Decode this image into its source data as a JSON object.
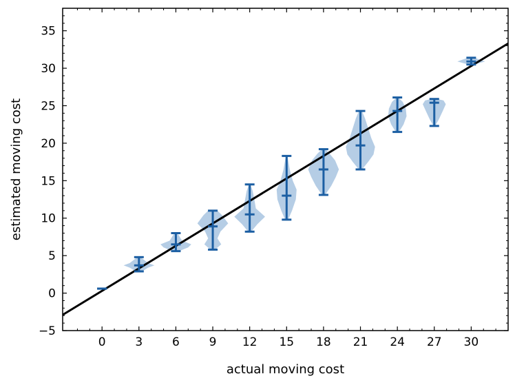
{
  "chart_data": {
    "type": "violin",
    "xlabel": "actual moving cost",
    "ylabel": "estimated moving cost",
    "xlim": [
      -3.2,
      33
    ],
    "ylim": [
      -5,
      38
    ],
    "xticks": [
      0,
      3,
      6,
      9,
      12,
      15,
      18,
      21,
      24,
      27,
      30
    ],
    "yticks": [
      -5,
      0,
      5,
      10,
      15,
      20,
      25,
      30,
      35
    ],
    "reference_line": {
      "slope": 1,
      "intercept": 0.3
    },
    "colors": {
      "violin_fill": "#a8c4e0",
      "whisker": "#1c5fa3",
      "line": "#000000"
    },
    "violins": [
      {
        "x": 0,
        "min": 0.6,
        "max": 0.6,
        "median": 0.6,
        "shape": [
          [
            0.6,
            0.3
          ]
        ]
      },
      {
        "x": 3,
        "min": 2.9,
        "max": 4.8,
        "median": 3.7,
        "shape": [
          [
            2.9,
            0.2
          ],
          [
            3.4,
            0.6
          ],
          [
            3.7,
            1.0
          ],
          [
            4.0,
            0.6
          ],
          [
            4.8,
            0.1
          ]
        ]
      },
      {
        "x": 6,
        "min": 5.6,
        "max": 8.0,
        "median": 6.5,
        "shape": [
          [
            5.6,
            0.2
          ],
          [
            6.1,
            0.8
          ],
          [
            6.5,
            1.0
          ],
          [
            7.0,
            0.4
          ],
          [
            8.0,
            0.1
          ]
        ]
      },
      {
        "x": 9,
        "min": 5.8,
        "max": 11.0,
        "median": 8.9,
        "shape": [
          [
            5.8,
            0.15
          ],
          [
            6.5,
            0.55
          ],
          [
            7.3,
            0.3
          ],
          [
            8.2,
            0.5
          ],
          [
            9.3,
            1.0
          ],
          [
            10.4,
            0.6
          ],
          [
            11.0,
            0.3
          ]
        ]
      },
      {
        "x": 12,
        "min": 8.2,
        "max": 14.5,
        "median": 10.5,
        "shape": [
          [
            8.2,
            0.1
          ],
          [
            9.2,
            0.5
          ],
          [
            10.2,
            1.0
          ],
          [
            11.3,
            0.4
          ],
          [
            12.5,
            0.3
          ],
          [
            13.6,
            0.2
          ],
          [
            14.5,
            0.05
          ]
        ]
      },
      {
        "x": 15,
        "min": 9.8,
        "max": 18.3,
        "median": 13.0,
        "shape": [
          [
            9.8,
            0.1
          ],
          [
            11.0,
            0.35
          ],
          [
            12.5,
            0.6
          ],
          [
            13.8,
            0.65
          ],
          [
            15.0,
            0.4
          ],
          [
            16.5,
            0.2
          ],
          [
            18.3,
            0.05
          ]
        ]
      },
      {
        "x": 18,
        "min": 13.1,
        "max": 19.2,
        "median": 16.5,
        "shape": [
          [
            13.1,
            0.1
          ],
          [
            14.3,
            0.5
          ],
          [
            15.5,
            0.8
          ],
          [
            16.5,
            1.0
          ],
          [
            17.7,
            0.75
          ],
          [
            18.6,
            0.4
          ],
          [
            19.2,
            0.1
          ]
        ]
      },
      {
        "x": 21,
        "min": 16.5,
        "max": 24.3,
        "median": 19.7,
        "shape": [
          [
            16.5,
            0.1
          ],
          [
            17.5,
            0.5
          ],
          [
            18.5,
            0.85
          ],
          [
            19.5,
            0.95
          ],
          [
            20.7,
            0.7
          ],
          [
            22.0,
            0.5
          ],
          [
            23.3,
            0.3
          ],
          [
            24.3,
            0.1
          ]
        ]
      },
      {
        "x": 24,
        "min": 21.5,
        "max": 26.1,
        "median": 24.3,
        "shape": [
          [
            21.5,
            0.1
          ],
          [
            22.5,
            0.4
          ],
          [
            23.6,
            0.6
          ],
          [
            24.6,
            0.55
          ],
          [
            25.5,
            0.35
          ],
          [
            26.1,
            0.05
          ]
        ]
      },
      {
        "x": 27,
        "min": 22.3,
        "max": 25.9,
        "median": 25.4,
        "shape": [
          [
            22.3,
            0.05
          ],
          [
            23.2,
            0.3
          ],
          [
            24.3,
            0.55
          ],
          [
            25.2,
            0.75
          ],
          [
            25.7,
            0.6
          ],
          [
            25.9,
            0.2
          ]
        ]
      },
      {
        "x": 30,
        "min": 30.5,
        "max": 31.4,
        "median": 30.9,
        "shape": [
          [
            30.5,
            0.2
          ],
          [
            30.9,
            0.9
          ],
          [
            31.4,
            0.2
          ]
        ]
      }
    ]
  }
}
